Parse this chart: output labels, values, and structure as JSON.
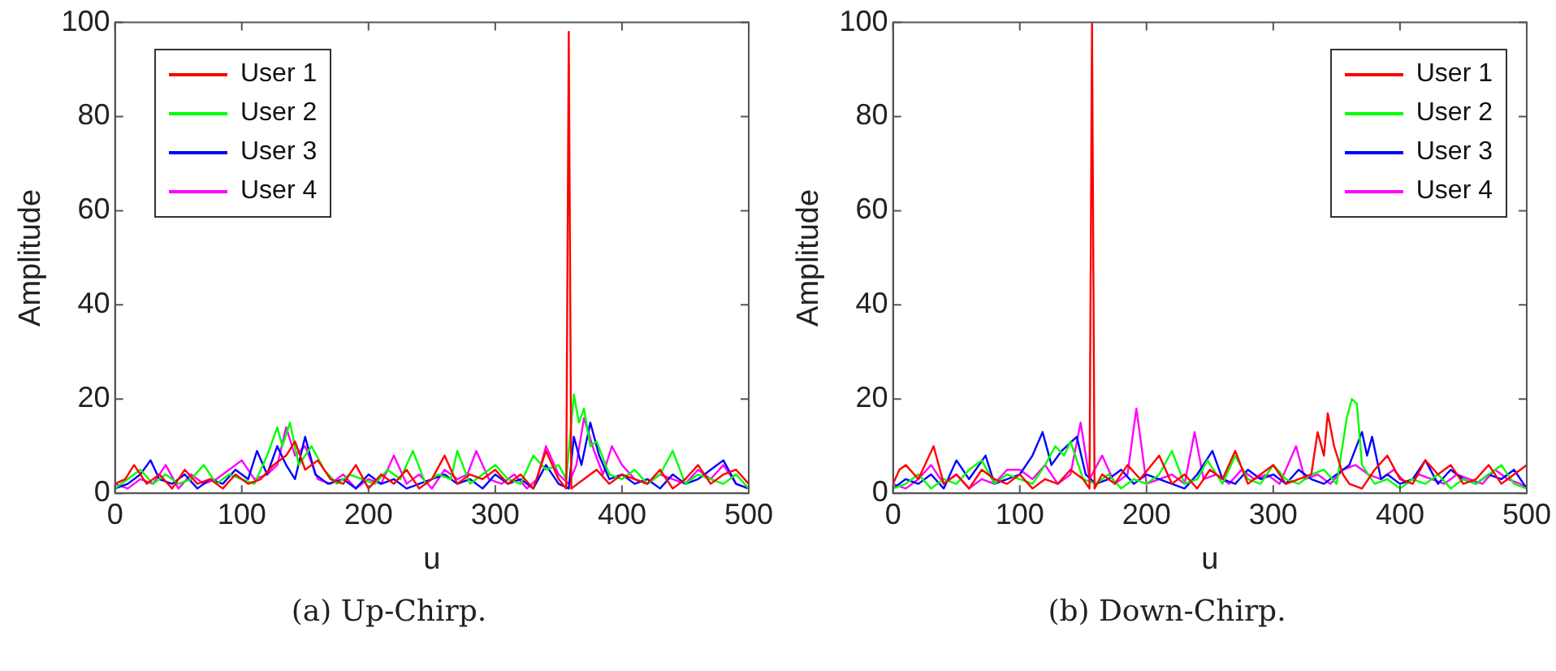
{
  "chart_data": [
    {
      "type": "line",
      "xlabel": "u",
      "ylabel": "Amplitude",
      "annotations": [
        "(a)  Up-Chirp."
      ],
      "xlim": [
        0,
        500
      ],
      "xticks": [
        0,
        100,
        200,
        300,
        400,
        500
      ],
      "ylim": [
        0,
        100
      ],
      "yticks": [
        0,
        20,
        40,
        60,
        80,
        100
      ],
      "grid": false,
      "legend": "top left",
      "marker": "none",
      "line_style": "solid",
      "series": [
        {
          "name": "User 1",
          "color": "#ff0000",
          "x": [
            0,
            8,
            15,
            25,
            35,
            45,
            55,
            65,
            75,
            85,
            95,
            105,
            115,
            125,
            135,
            142,
            150,
            160,
            170,
            180,
            190,
            200,
            210,
            220,
            230,
            240,
            250,
            260,
            270,
            280,
            290,
            300,
            310,
            320,
            330,
            340,
            350,
            356,
            358,
            360,
            370,
            380,
            390,
            400,
            410,
            420,
            430,
            440,
            450,
            460,
            470,
            480,
            490,
            500
          ],
          "values": [
            2,
            3,
            6,
            2,
            4,
            1,
            5,
            2,
            3,
            1,
            4,
            2,
            3,
            6,
            8,
            11,
            5,
            7,
            3,
            2,
            6,
            1,
            4,
            2,
            5,
            1,
            3,
            8,
            2,
            4,
            3,
            5,
            2,
            4,
            1,
            9,
            3,
            1,
            98,
            1,
            3,
            5,
            2,
            4,
            3,
            2,
            5,
            1,
            3,
            6,
            2,
            4,
            5,
            2
          ]
        },
        {
          "name": "User 2",
          "color": "#00ff00",
          "x": [
            0,
            10,
            20,
            30,
            40,
            50,
            60,
            70,
            80,
            90,
            100,
            110,
            120,
            128,
            132,
            138,
            145,
            155,
            165,
            175,
            185,
            195,
            205,
            215,
            225,
            235,
            245,
            255,
            265,
            270,
            280,
            290,
            300,
            310,
            320,
            330,
            340,
            350,
            356,
            362,
            366,
            370,
            375,
            380,
            390,
            400,
            410,
            420,
            430,
            440,
            450,
            460,
            470,
            480,
            490,
            500
          ],
          "values": [
            1,
            3,
            5,
            2,
            4,
            2,
            3,
            6,
            2,
            4,
            3,
            2,
            8,
            14,
            10,
            15,
            6,
            10,
            5,
            2,
            4,
            3,
            2,
            5,
            3,
            9,
            2,
            4,
            3,
            9,
            2,
            4,
            6,
            3,
            2,
            8,
            5,
            6,
            3,
            21,
            15,
            18,
            10,
            11,
            4,
            3,
            5,
            2,
            4,
            9,
            2,
            4,
            3,
            2,
            4,
            1
          ]
        },
        {
          "name": "User 3",
          "color": "#0000ff",
          "x": [
            0,
            10,
            20,
            28,
            35,
            45,
            55,
            65,
            75,
            85,
            95,
            105,
            112,
            120,
            128,
            135,
            142,
            150,
            158,
            168,
            180,
            190,
            200,
            210,
            220,
            230,
            240,
            250,
            260,
            270,
            280,
            290,
            300,
            310,
            320,
            330,
            340,
            350,
            358,
            362,
            368,
            375,
            382,
            390,
            400,
            410,
            420,
            430,
            440,
            450,
            460,
            470,
            480,
            490,
            500
          ],
          "values": [
            1,
            2,
            4,
            7,
            3,
            2,
            4,
            1,
            3,
            2,
            5,
            3,
            9,
            4,
            10,
            6,
            3,
            12,
            4,
            2,
            3,
            1,
            4,
            2,
            3,
            1,
            2,
            3,
            4,
            2,
            3,
            1,
            4,
            2,
            3,
            1,
            6,
            2,
            1,
            12,
            6,
            15,
            8,
            3,
            4,
            2,
            3,
            1,
            4,
            2,
            3,
            5,
            7,
            2,
            1
          ]
        },
        {
          "name": "User 4",
          "color": "#ff00ff",
          "x": [
            0,
            10,
            20,
            30,
            40,
            50,
            60,
            70,
            80,
            90,
            100,
            110,
            120,
            128,
            135,
            142,
            150,
            160,
            170,
            180,
            190,
            200,
            210,
            220,
            230,
            240,
            250,
            260,
            270,
            278,
            285,
            295,
            305,
            315,
            325,
            333,
            340,
            350,
            358,
            364,
            370,
            378,
            385,
            392,
            400,
            410,
            420,
            430,
            440,
            450,
            460,
            470,
            480,
            490,
            500
          ],
          "values": [
            2,
            1,
            3,
            2,
            6,
            1,
            4,
            2,
            3,
            5,
            7,
            3,
            4,
            6,
            14,
            8,
            10,
            3,
            2,
            4,
            1,
            3,
            2,
            8,
            2,
            4,
            1,
            5,
            3,
            4,
            9,
            3,
            2,
            4,
            1,
            3,
            10,
            4,
            2,
            6,
            16,
            9,
            4,
            10,
            6,
            3,
            2,
            4,
            3,
            2,
            5,
            3,
            6,
            2,
            1
          ]
        }
      ]
    },
    {
      "type": "line",
      "xlabel": "u",
      "ylabel": "Amplitude",
      "annotations": [
        "(b)  Down-Chirp."
      ],
      "xlim": [
        0,
        500
      ],
      "xticks": [
        0,
        100,
        200,
        300,
        400,
        500
      ],
      "ylim": [
        0,
        100
      ],
      "yticks": [
        0,
        20,
        40,
        60,
        80,
        100
      ],
      "grid": false,
      "legend": "top right",
      "marker": "none",
      "line_style": "solid",
      "series": [
        {
          "name": "User 1",
          "color": "#ff0000",
          "x": [
            0,
            5,
            10,
            20,
            32,
            40,
            50,
            60,
            70,
            80,
            90,
            100,
            110,
            120,
            130,
            140,
            150,
            155,
            157,
            159,
            165,
            175,
            185,
            195,
            210,
            220,
            230,
            240,
            250,
            260,
            270,
            280,
            290,
            300,
            310,
            320,
            330,
            335,
            340,
            343,
            348,
            355,
            360,
            370,
            380,
            390,
            400,
            410,
            420,
            430,
            440,
            450,
            460,
            470,
            480,
            490,
            500
          ],
          "values": [
            2,
            5,
            6,
            3,
            10,
            2,
            4,
            1,
            5,
            3,
            2,
            4,
            1,
            3,
            2,
            5,
            3,
            1,
            100,
            1,
            4,
            2,
            6,
            3,
            8,
            2,
            4,
            1,
            5,
            3,
            9,
            2,
            4,
            6,
            2,
            3,
            4,
            13,
            8,
            17,
            10,
            4,
            2,
            1,
            5,
            8,
            3,
            2,
            7,
            4,
            6,
            2,
            3,
            6,
            2,
            4,
            6
          ]
        },
        {
          "name": "User 2",
          "color": "#00ff00",
          "x": [
            0,
            10,
            20,
            30,
            40,
            50,
            60,
            70,
            80,
            90,
            100,
            110,
            120,
            128,
            135,
            140,
            150,
            160,
            170,
            180,
            190,
            200,
            210,
            220,
            230,
            240,
            248,
            260,
            270,
            280,
            290,
            300,
            310,
            320,
            330,
            340,
            350,
            358,
            362,
            366,
            370,
            380,
            390,
            400,
            410,
            420,
            430,
            440,
            450,
            460,
            470,
            480,
            490,
            500
          ],
          "values": [
            1,
            2,
            4,
            1,
            3,
            2,
            5,
            7,
            2,
            4,
            3,
            2,
            6,
            10,
            8,
            11,
            3,
            2,
            4,
            1,
            3,
            2,
            4,
            9,
            2,
            3,
            7,
            2,
            8,
            3,
            2,
            6,
            3,
            2,
            4,
            5,
            2,
            16,
            20,
            19,
            6,
            2,
            3,
            1,
            3,
            2,
            4,
            1,
            3,
            2,
            4,
            6,
            2,
            1
          ]
        },
        {
          "name": "User 3",
          "color": "#0000ff",
          "x": [
            0,
            10,
            20,
            30,
            40,
            50,
            60,
            73,
            80,
            90,
            100,
            110,
            118,
            125,
            133,
            145,
            152,
            160,
            170,
            180,
            190,
            200,
            210,
            220,
            230,
            240,
            252,
            260,
            270,
            280,
            290,
            300,
            310,
            320,
            330,
            340,
            350,
            360,
            370,
            374,
            378,
            385,
            390,
            400,
            410,
            420,
            430,
            440,
            450,
            460,
            470,
            480,
            490,
            500
          ],
          "values": [
            1,
            3,
            2,
            4,
            1,
            7,
            3,
            8,
            2,
            3,
            4,
            8,
            13,
            6,
            9,
            12,
            4,
            2,
            3,
            5,
            2,
            4,
            3,
            2,
            1,
            4,
            9,
            3,
            2,
            5,
            3,
            4,
            2,
            5,
            3,
            2,
            4,
            6,
            13,
            8,
            12,
            3,
            4,
            2,
            3,
            7,
            2,
            5,
            3,
            2,
            4,
            3,
            5,
            1
          ]
        },
        {
          "name": "User 4",
          "color": "#ff00ff",
          "x": [
            0,
            10,
            20,
            30,
            40,
            50,
            60,
            70,
            80,
            90,
            100,
            110,
            120,
            130,
            140,
            148,
            155,
            165,
            175,
            185,
            192,
            200,
            210,
            220,
            230,
            238,
            245,
            255,
            265,
            275,
            285,
            295,
            305,
            318,
            325,
            335,
            345,
            355,
            365,
            375,
            385,
            395,
            405,
            415,
            425,
            435,
            445,
            455,
            465,
            475,
            485,
            495,
            500
          ],
          "values": [
            2,
            1,
            3,
            6,
            2,
            4,
            1,
            3,
            2,
            5,
            5,
            3,
            6,
            2,
            4,
            15,
            3,
            8,
            2,
            4,
            18,
            2,
            3,
            4,
            2,
            13,
            3,
            4,
            2,
            5,
            3,
            4,
            2,
            10,
            3,
            4,
            2,
            5,
            6,
            4,
            3,
            5,
            2,
            4,
            3,
            2,
            4,
            3,
            2,
            5,
            3,
            2,
            1
          ]
        }
      ]
    }
  ]
}
